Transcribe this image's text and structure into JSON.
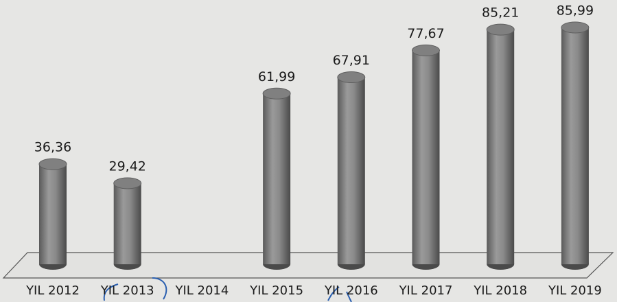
{
  "chart_data": {
    "type": "bar",
    "categories": [
      "YIL 2012",
      "YIL 2013",
      "YIL 2014",
      "YIL 2015",
      "YIL 2016",
      "YIL 2017",
      "YIL 2018",
      "YIL 2019"
    ],
    "values": [
      36.36,
      29.42,
      null,
      61.99,
      67.91,
      77.67,
      85.21,
      85.99
    ],
    "value_labels": [
      "36,36",
      "29,42",
      null,
      "61,99",
      "67,91",
      "77,67",
      "85,21",
      "85,99"
    ],
    "color": "#808080"
  }
}
